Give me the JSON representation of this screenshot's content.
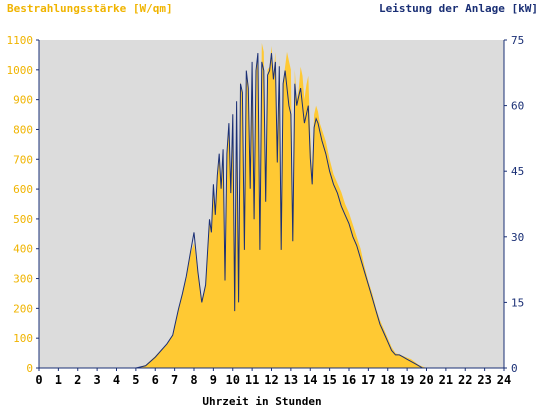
{
  "chart_data": {
    "type": "area",
    "left_axis_title": "Bestrahlungsstärke [W/qm]",
    "right_axis_title": "Leistung der Anlage [kW]",
    "xlabel": "Uhrzeit in Stunden",
    "xlim": [
      0,
      24
    ],
    "ylim_left": [
      0,
      1100
    ],
    "ylim_right": [
      0,
      75
    ],
    "x_ticks": [
      "0",
      "1",
      "2",
      "3",
      "4",
      "5",
      "6",
      "7",
      "8",
      "9",
      "10",
      "11",
      "12",
      "13",
      "14",
      "15",
      "16",
      "17",
      "18",
      "19",
      "20",
      "21",
      "22",
      "23",
      "24"
    ],
    "y_left_ticks": [
      "0",
      "100",
      "200",
      "300",
      "400",
      "500",
      "600",
      "700",
      "800",
      "900",
      "1000",
      "1100"
    ],
    "y_right_ticks": [
      "0",
      "15",
      "30",
      "45",
      "60",
      "75"
    ],
    "colors": {
      "plot_background": "#dcdcdc",
      "irradiance_fill": "#ffc933",
      "power_line": "#1a2f75",
      "left_axis_text": "#f0b400",
      "right_axis_text": "#1a2f75",
      "axis_line": "#1a2f75"
    },
    "series": [
      {
        "axis": "left",
        "x": [
          0,
          5.0,
          5.5,
          6.0,
          6.3,
          6.6,
          6.9,
          7.0,
          7.2,
          7.4,
          7.6,
          7.8,
          8.0,
          8.2,
          8.4,
          8.6,
          8.8,
          8.9,
          9.0,
          9.1,
          9.2,
          9.3,
          9.4,
          9.5,
          9.6,
          9.7,
          9.8,
          9.9,
          10.0,
          10.1,
          10.2,
          10.3,
          10.4,
          10.5,
          10.6,
          10.7,
          10.8,
          10.9,
          11.0,
          11.1,
          11.2,
          11.3,
          11.4,
          11.5,
          11.6,
          11.7,
          11.8,
          11.9,
          12.0,
          12.1,
          12.2,
          12.3,
          12.4,
          12.5,
          12.6,
          12.7,
          12.8,
          12.9,
          13.0,
          13.1,
          13.2,
          13.3,
          13.4,
          13.5,
          13.6,
          13.7,
          13.8,
          13.9,
          14.0,
          14.1,
          14.2,
          14.3,
          14.4,
          14.5,
          14.6,
          14.8,
          15.0,
          15.2,
          15.4,
          15.6,
          15.8,
          16.0,
          16.2,
          16.4,
          16.6,
          16.8,
          17.0,
          17.2,
          17.4,
          17.6,
          17.8,
          18.0,
          18.2,
          18.4,
          18.6,
          18.8,
          19.0,
          19.2,
          19.4,
          19.6,
          19.8,
          20.0,
          20.2,
          24
        ],
        "values": [
          0,
          0,
          10,
          40,
          60,
          80,
          110,
          140,
          200,
          250,
          300,
          380,
          420,
          320,
          230,
          280,
          500,
          450,
          610,
          520,
          640,
          700,
          600,
          720,
          300,
          720,
          820,
          580,
          860,
          200,
          900,
          220,
          960,
          930,
          400,
          1000,
          950,
          600,
          1030,
          500,
          1000,
          1060,
          400,
          1090,
          1060,
          550,
          1000,
          1010,
          1080,
          980,
          1060,
          700,
          1040,
          400,
          960,
          1010,
          1060,
          1030,
          1000,
          420,
          1000,
          900,
          930,
          1010,
          980,
          900,
          950,
          980,
          780,
          650,
          850,
          880,
          860,
          820,
          800,
          760,
          700,
          650,
          620,
          590,
          550,
          520,
          480,
          440,
          400,
          340,
          290,
          250,
          200,
          160,
          130,
          100,
          70,
          50,
          45,
          40,
          35,
          30,
          20,
          10,
          5,
          0,
          0,
          0
        ]
      },
      {
        "axis": "right",
        "x": [
          0,
          5.0,
          5.5,
          6.0,
          6.3,
          6.6,
          6.9,
          7.0,
          7.2,
          7.4,
          7.6,
          7.8,
          8.0,
          8.2,
          8.4,
          8.6,
          8.8,
          8.9,
          9.0,
          9.1,
          9.2,
          9.3,
          9.4,
          9.5,
          9.6,
          9.7,
          9.8,
          9.9,
          10.0,
          10.1,
          10.2,
          10.3,
          10.4,
          10.5,
          10.6,
          10.7,
          10.8,
          10.9,
          11.0,
          11.1,
          11.2,
          11.3,
          11.4,
          11.5,
          11.6,
          11.7,
          11.8,
          11.9,
          12.0,
          12.1,
          12.2,
          12.3,
          12.4,
          12.5,
          12.6,
          12.7,
          12.8,
          12.9,
          13.0,
          13.1,
          13.2,
          13.3,
          13.4,
          13.5,
          13.6,
          13.7,
          13.8,
          13.9,
          14.0,
          14.1,
          14.2,
          14.3,
          14.4,
          14.5,
          14.6,
          14.8,
          15.0,
          15.2,
          15.4,
          15.6,
          15.8,
          16.0,
          16.2,
          16.4,
          16.6,
          16.8,
          17.0,
          17.2,
          17.4,
          17.6,
          17.8,
          18.0,
          18.2,
          18.4,
          18.6,
          18.8,
          19.0,
          19.2,
          19.4,
          19.6,
          19.8,
          20.0,
          20.2,
          24
        ],
        "values": [
          0,
          0,
          0.5,
          2.5,
          4,
          5.5,
          7.5,
          9.5,
          13.5,
          17,
          21,
          26,
          31,
          22,
          15,
          19,
          34,
          31,
          42,
          35,
          44,
          49,
          41,
          50,
          20,
          49,
          56,
          40,
          58,
          13,
          61,
          15,
          65,
          63,
          27,
          68,
          64,
          41,
          70,
          34,
          68,
          72,
          27,
          70,
          68,
          38,
          67,
          68,
          72,
          66,
          70,
          47,
          69,
          27,
          65,
          68,
          64,
          60,
          58,
          29,
          65,
          60,
          62,
          64,
          60,
          56,
          58,
          60,
          48,
          42,
          55,
          57,
          56,
          54,
          52,
          49,
          45,
          42,
          40,
          37,
          35,
          33,
          30,
          28,
          25,
          22,
          19,
          16,
          13,
          10,
          8,
          6,
          4,
          3,
          3,
          2.5,
          2,
          1.5,
          1,
          0.5,
          0,
          0,
          0,
          0
        ]
      }
    ]
  }
}
